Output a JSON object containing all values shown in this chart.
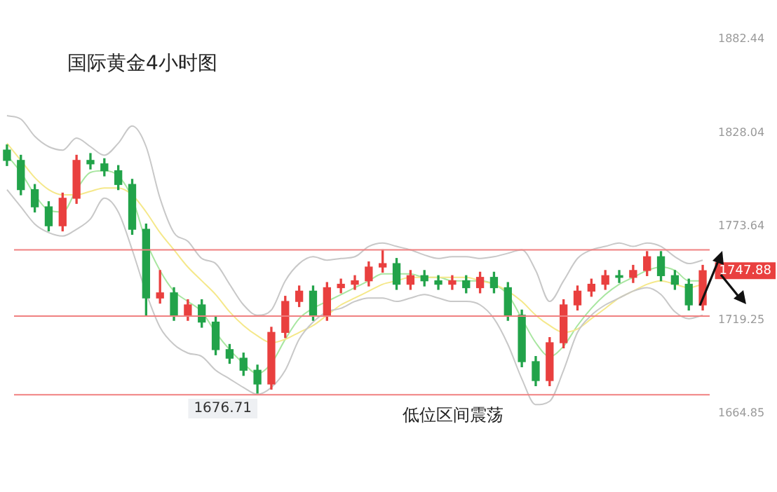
{
  "chart_data": {
    "type": "candlestick",
    "title": "国际黄金4小时图",
    "categories": [
      null,
      null,
      null,
      null,
      null,
      null,
      null,
      null,
      null,
      null,
      null,
      null,
      null,
      null,
      null,
      null,
      null,
      null,
      null,
      null,
      null,
      null,
      null,
      null,
      null,
      null,
      null,
      null,
      null,
      null,
      null,
      null,
      null,
      null,
      null,
      null,
      null,
      null,
      null,
      null,
      null,
      null,
      null,
      null,
      null,
      null,
      null,
      null,
      null,
      null,
      null
    ],
    "ohlc": [
      [
        1818,
        1821,
        1809,
        1812
      ],
      [
        1812,
        1815,
        1792,
        1795
      ],
      [
        1795,
        1798,
        1782,
        1785
      ],
      [
        1785,
        1788,
        1771,
        1774
      ],
      [
        1774,
        1793,
        1771,
        1790
      ],
      [
        1790,
        1815,
        1787,
        1812
      ],
      [
        1812,
        1816,
        1807,
        1810
      ],
      [
        1810,
        1813,
        1803,
        1806
      ],
      [
        1806,
        1809,
        1795,
        1798
      ],
      [
        1798,
        1801,
        1769,
        1772
      ],
      [
        1772,
        1775,
        1722,
        1732
      ],
      [
        1732,
        1748,
        1729,
        1735
      ],
      [
        1735,
        1738,
        1719,
        1722
      ],
      [
        1722,
        1731,
        1719,
        1728
      ],
      [
        1728,
        1731,
        1715,
        1718
      ],
      [
        1718,
        1721,
        1699,
        1702
      ],
      [
        1702,
        1705,
        1694,
        1697
      ],
      [
        1697,
        1700,
        1687,
        1690
      ],
      [
        1690,
        1693,
        1676.71,
        1682
      ],
      [
        1682,
        1715,
        1679,
        1712
      ],
      [
        1712,
        1733,
        1709,
        1730
      ],
      [
        1730,
        1739,
        1727,
        1736
      ],
      [
        1736,
        1739,
        1719,
        1722
      ],
      [
        1722,
        1741,
        1719,
        1738
      ],
      [
        1738,
        1743,
        1735,
        1740
      ],
      [
        1740,
        1745,
        1737,
        1742
      ],
      [
        1742,
        1753,
        1739,
        1750
      ],
      [
        1750,
        1760,
        1747,
        1752
      ],
      [
        1752,
        1755,
        1737,
        1740
      ],
      [
        1740,
        1748,
        1737,
        1745
      ],
      [
        1745,
        1748,
        1739,
        1742
      ],
      [
        1742,
        1745,
        1737,
        1740
      ],
      [
        1740,
        1745,
        1737,
        1742
      ],
      [
        1742,
        1745,
        1735,
        1738
      ],
      [
        1738,
        1747,
        1735,
        1744
      ],
      [
        1744,
        1747,
        1735,
        1738
      ],
      [
        1738,
        1741,
        1719,
        1722
      ],
      [
        1722,
        1725,
        1692,
        1695
      ],
      [
        1695,
        1698,
        1681,
        1684
      ],
      [
        1684,
        1709,
        1681,
        1706
      ],
      [
        1706,
        1731,
        1703,
        1728
      ],
      [
        1728,
        1739,
        1725,
        1736
      ],
      [
        1736,
        1743,
        1733,
        1740
      ],
      [
        1740,
        1748,
        1737,
        1745
      ],
      [
        1745,
        1748,
        1741,
        1744
      ],
      [
        1744,
        1751,
        1741,
        1748
      ],
      [
        1748,
        1759,
        1745,
        1756
      ],
      [
        1756,
        1759,
        1742,
        1745
      ],
      [
        1745,
        1748,
        1737,
        1740
      ],
      [
        1740,
        1743,
        1725,
        1728
      ],
      [
        1728,
        1751,
        1725,
        1747.88
      ]
    ],
    "colors": [
      "#22a34a",
      "#22a34a",
      "#22a34a",
      "#22a34a",
      "#e9403f",
      "#e9403f",
      "#22a34a",
      "#22a34a",
      "#22a34a",
      "#22a34a",
      "#22a34a",
      "#e9403f",
      "#22a34a",
      "#e9403f",
      "#22a34a",
      "#22a34a",
      "#22a34a",
      "#22a34a",
      "#22a34a",
      "#e9403f",
      "#e9403f",
      "#e9403f",
      "#22a34a",
      "#e9403f",
      "#e9403f",
      "#e9403f",
      "#e9403f",
      "#e9403f",
      "#22a34a",
      "#e9403f",
      "#22a34a",
      "#22a34a",
      "#e9403f",
      "#22a34a",
      "#e9403f",
      "#22a34a",
      "#22a34a",
      "#22a34a",
      "#22a34a",
      "#e9403f",
      "#e9403f",
      "#e9403f",
      "#e9403f",
      "#e9403f",
      "#22a34a",
      "#e9403f",
      "#e9403f",
      "#22a34a",
      "#22a34a",
      "#22a34a",
      "#e9403f"
    ],
    "series": [
      {
        "type": "line",
        "color": "#c8c8c8",
        "values": [
          1838,
          1836,
          1826,
          1820,
          1818,
          1825,
          1820,
          1815,
          1822,
          1832,
          1820,
          1790,
          1770,
          1765,
          1755,
          1752,
          1740,
          1728,
          1722,
          1725,
          1742,
          1752,
          1756,
          1754,
          1755,
          1756,
          1762,
          1764,
          1762,
          1760,
          1757,
          1755,
          1756,
          1756,
          1755,
          1756,
          1758,
          1760,
          1748,
          1730,
          1742,
          1755,
          1760,
          1762,
          1764,
          1762,
          1764,
          1762,
          1756,
          1752,
          1754
        ]
      },
      {
        "type": "line",
        "color": "#c8c8c8",
        "values": [
          1795,
          1785,
          1775,
          1770,
          1768,
          1772,
          1778,
          1790,
          1782,
          1760,
          1735,
          1715,
          1705,
          1700,
          1698,
          1690,
          1685,
          1680,
          1676,
          1680,
          1690,
          1708,
          1718,
          1724,
          1726,
          1730,
          1732,
          1732,
          1730,
          1732,
          1734,
          1732,
          1730,
          1730,
          1728,
          1720,
          1705,
          1685,
          1670,
          1672,
          1690,
          1712,
          1722,
          1728,
          1732,
          1736,
          1738,
          1734,
          1724,
          1720,
          1722
        ]
      },
      {
        "type": "line",
        "color": "#f5e88a",
        "values": [
          1822,
          1812,
          1802,
          1795,
          1792,
          1792,
          1794,
          1796,
          1796,
          1792,
          1782,
          1770,
          1760,
          1750,
          1742,
          1734,
          1724,
          1716,
          1710,
          1706,
          1708,
          1712,
          1716,
          1722,
          1728,
          1732,
          1736,
          1740,
          1742,
          1744,
          1744,
          1744,
          1744,
          1744,
          1742,
          1740,
          1736,
          1730,
          1722,
          1716,
          1712,
          1714,
          1720,
          1726,
          1732,
          1736,
          1740,
          1742,
          1740,
          1738,
          1740
        ]
      },
      {
        "type": "line",
        "color": "#a8e6a0",
        "values": [
          1815,
          1805,
          1792,
          1783,
          1782,
          1795,
          1805,
          1806,
          1803,
          1790,
          1765,
          1748,
          1736,
          1730,
          1724,
          1712,
          1702,
          1694,
          1688,
          1694,
          1708,
          1720,
          1726,
          1730,
          1734,
          1738,
          1742,
          1746,
          1746,
          1746,
          1744,
          1744,
          1742,
          1742,
          1742,
          1740,
          1734,
          1720,
          1706,
          1698,
          1704,
          1716,
          1726,
          1734,
          1740,
          1744,
          1748,
          1750,
          1748,
          1742,
          1742
        ]
      }
    ],
    "ylim": [
      1664.85,
      1882.44
    ],
    "yticks": [
      1664.85,
      1719.25,
      1773.64,
      1828.04,
      1882.44
    ],
    "tick_labels": "y",
    "ref_lines": [
      {
        "axis": "y",
        "value": 1760,
        "color": "#f08080"
      },
      {
        "axis": "y",
        "value": 1721.5,
        "color": "#f08080"
      },
      {
        "axis": "y",
        "value": 1675.7,
        "color": "#f08080"
      }
    ],
    "annotations": [
      {
        "text": "1676.71",
        "y": 1676.71
      },
      "1747.88",
      "低位区间震荡"
    ]
  }
}
